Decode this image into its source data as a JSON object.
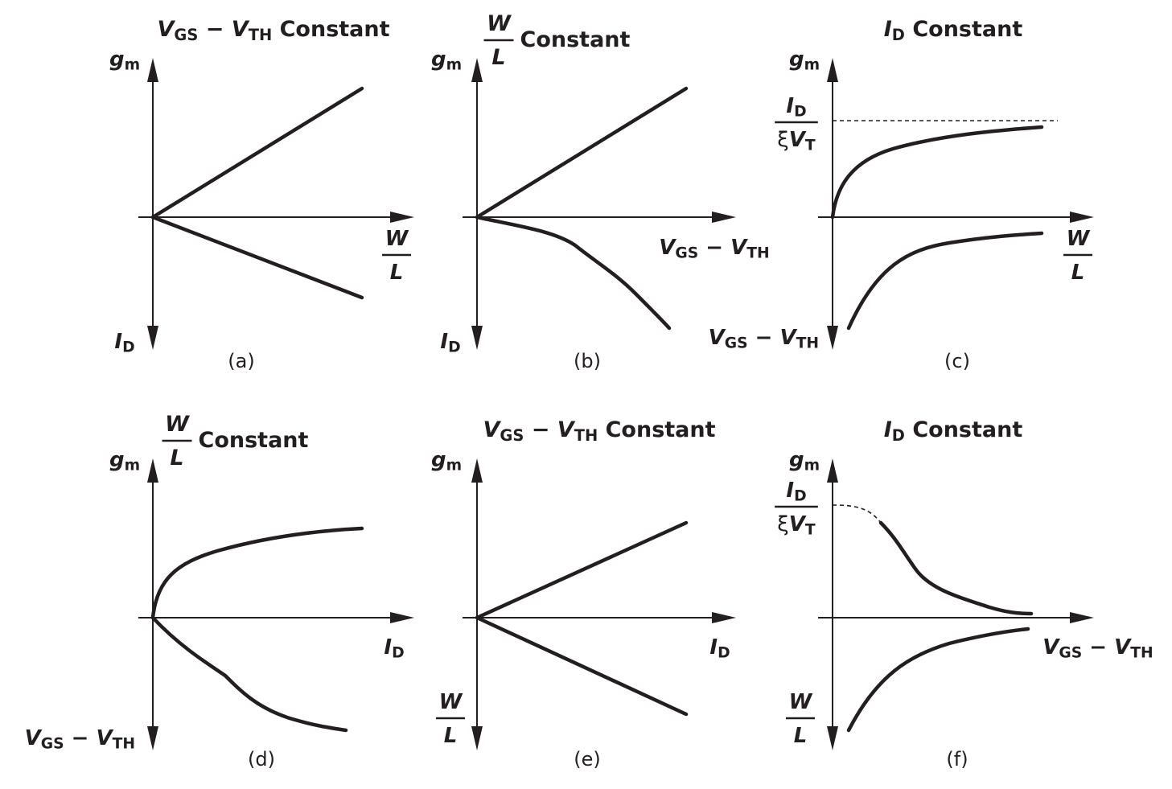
{
  "panels": [
    {
      "title": [
        {
          "text": "V",
          "style": "var"
        },
        {
          "text": "GS",
          "style": "sub"
        },
        {
          "text": " − ",
          "style": "plain"
        },
        {
          "text": "V",
          "style": "var"
        },
        {
          "text": "TH",
          "style": "sub"
        },
        {
          "text": " Constant",
          "style": "plain"
        }
      ],
      "y_label_top": [
        {
          "text": "g",
          "style": "var"
        },
        {
          "text": "m",
          "style": "sub"
        }
      ],
      "x_label": {
        "num": [
          {
            "text": "W",
            "style": "var"
          }
        ],
        "den": [
          {
            "text": "L",
            "style": "var"
          }
        ]
      },
      "y_label_bottom": [
        {
          "text": "I",
          "style": "var"
        },
        {
          "text": "D",
          "style": "sub"
        }
      ],
      "caption": "(a)"
    },
    {
      "title": {
        "num": [
          {
            "text": "W",
            "style": "var"
          }
        ],
        "den": [
          {
            "text": "L",
            "style": "var"
          }
        ],
        "after": [
          {
            "text": "Constant",
            "style": "plain"
          }
        ]
      },
      "y_label_top": [
        {
          "text": "g",
          "style": "var"
        },
        {
          "text": "m",
          "style": "sub"
        }
      ],
      "x_label": [
        {
          "text": "V",
          "style": "var"
        },
        {
          "text": "GS",
          "style": "sub"
        },
        {
          "text": " − ",
          "style": "plain"
        },
        {
          "text": "V",
          "style": "var"
        },
        {
          "text": "TH",
          "style": "sub"
        }
      ],
      "y_label_bottom": [
        {
          "text": "I",
          "style": "var"
        },
        {
          "text": "D",
          "style": "sub"
        }
      ],
      "caption": "(b)"
    },
    {
      "title": [
        {
          "text": "I",
          "style": "var"
        },
        {
          "text": "D",
          "style": "sub"
        },
        {
          "text": " Constant",
          "style": "plain"
        }
      ],
      "y_label_top": [
        {
          "text": "g",
          "style": "var"
        },
        {
          "text": "m",
          "style": "sub"
        }
      ],
      "asymptote_label": {
        "num": [
          {
            "text": "I",
            "style": "var"
          },
          {
            "text": "D",
            "style": "sub"
          }
        ],
        "den": [
          {
            "text": "ξ",
            "style": "greek"
          },
          {
            "text": "V",
            "style": "var"
          },
          {
            "text": "T",
            "style": "sub"
          }
        ]
      },
      "x_label": {
        "num": [
          {
            "text": "W",
            "style": "var"
          }
        ],
        "den": [
          {
            "text": "L",
            "style": "var"
          }
        ]
      },
      "y_label_bottom": [
        {
          "text": "V",
          "style": "var"
        },
        {
          "text": "GS",
          "style": "sub"
        },
        {
          "text": " − ",
          "style": "plain"
        },
        {
          "text": "V",
          "style": "var"
        },
        {
          "text": "TH",
          "style": "sub"
        }
      ],
      "caption": "(c)"
    },
    {
      "title": {
        "num": [
          {
            "text": "W",
            "style": "var"
          }
        ],
        "den": [
          {
            "text": "L",
            "style": "var"
          }
        ],
        "after": [
          {
            "text": "Constant",
            "style": "plain"
          }
        ]
      },
      "y_label_top": [
        {
          "text": "g",
          "style": "var"
        },
        {
          "text": "m",
          "style": "sub"
        }
      ],
      "x_label": [
        {
          "text": "I",
          "style": "var"
        },
        {
          "text": "D",
          "style": "sub"
        }
      ],
      "y_label_bottom": [
        {
          "text": "V",
          "style": "var"
        },
        {
          "text": "GS",
          "style": "sub"
        },
        {
          "text": " − ",
          "style": "plain"
        },
        {
          "text": "V",
          "style": "var"
        },
        {
          "text": "TH",
          "style": "sub"
        }
      ],
      "caption": "(d)"
    },
    {
      "title": [
        {
          "text": "V",
          "style": "var"
        },
        {
          "text": "GS",
          "style": "sub"
        },
        {
          "text": " − ",
          "style": "plain"
        },
        {
          "text": "V",
          "style": "var"
        },
        {
          "text": "TH",
          "style": "sub"
        },
        {
          "text": " Constant",
          "style": "plain"
        }
      ],
      "y_label_top": [
        {
          "text": "g",
          "style": "var"
        },
        {
          "text": "m",
          "style": "sub"
        }
      ],
      "x_label": [
        {
          "text": "I",
          "style": "var"
        },
        {
          "text": "D",
          "style": "sub"
        }
      ],
      "y_label_bottom": {
        "num": [
          {
            "text": "W",
            "style": "var"
          }
        ],
        "den": [
          {
            "text": "L",
            "style": "var"
          }
        ]
      },
      "caption": "(e)"
    },
    {
      "title": [
        {
          "text": "I",
          "style": "var"
        },
        {
          "text": "D",
          "style": "sub"
        },
        {
          "text": " Constant",
          "style": "plain"
        }
      ],
      "y_label_top": [
        {
          "text": "g",
          "style": "var"
        },
        {
          "text": "m",
          "style": "sub"
        }
      ],
      "asymptote_label": {
        "num": [
          {
            "text": "I",
            "style": "var"
          },
          {
            "text": "D",
            "style": "sub"
          }
        ],
        "den": [
          {
            "text": "ξ",
            "style": "greek"
          },
          {
            "text": "V",
            "style": "var"
          },
          {
            "text": "T",
            "style": "sub"
          }
        ]
      },
      "x_label": [
        {
          "text": "V",
          "style": "var"
        },
        {
          "text": "GS",
          "style": "sub"
        },
        {
          "text": " − ",
          "style": "plain"
        },
        {
          "text": "V",
          "style": "var"
        },
        {
          "text": "TH",
          "style": "sub"
        }
      ],
      "y_label_bottom": {
        "num": [
          {
            "text": "W",
            "style": "var"
          }
        ],
        "den": [
          {
            "text": "L",
            "style": "var"
          }
        ]
      },
      "caption": "(f)"
    }
  ]
}
